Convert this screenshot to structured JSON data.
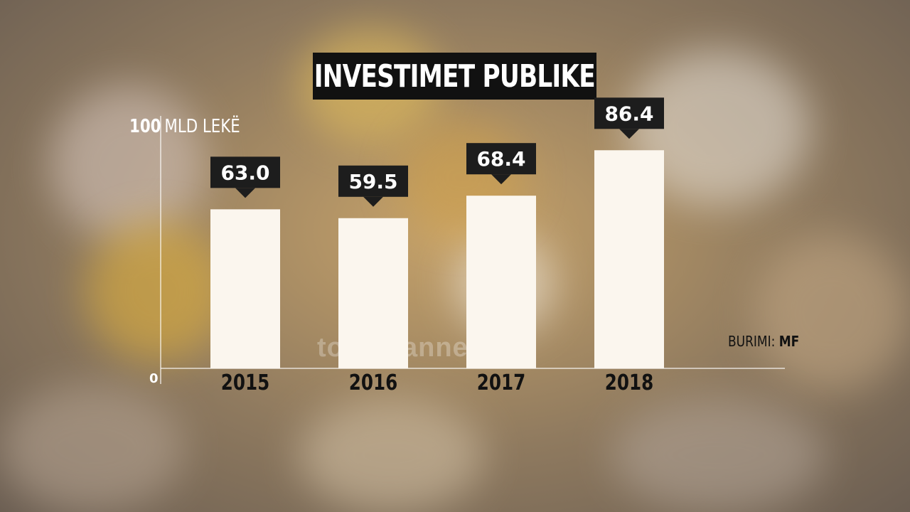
{
  "chart_data": {
    "type": "bar",
    "title": "INVESTIMET PUBLIKE",
    "ylabel": "MLD LEKË",
    "ytick_top": "100",
    "ytick_bottom": "0",
    "ylim": [
      0,
      100
    ],
    "categories": [
      "2015",
      "2016",
      "2017",
      "2018"
    ],
    "values": [
      63.0,
      59.5,
      68.4,
      86.4
    ],
    "value_labels": [
      "63.0",
      "59.5",
      "68.4",
      "86.4"
    ],
    "grid": false,
    "legend": "none",
    "source_prefix": "BURIMI:",
    "source": "MF",
    "bar_color": "#fbf6ee",
    "label_box_color": "#1d1d1d"
  },
  "watermark": "top channel"
}
